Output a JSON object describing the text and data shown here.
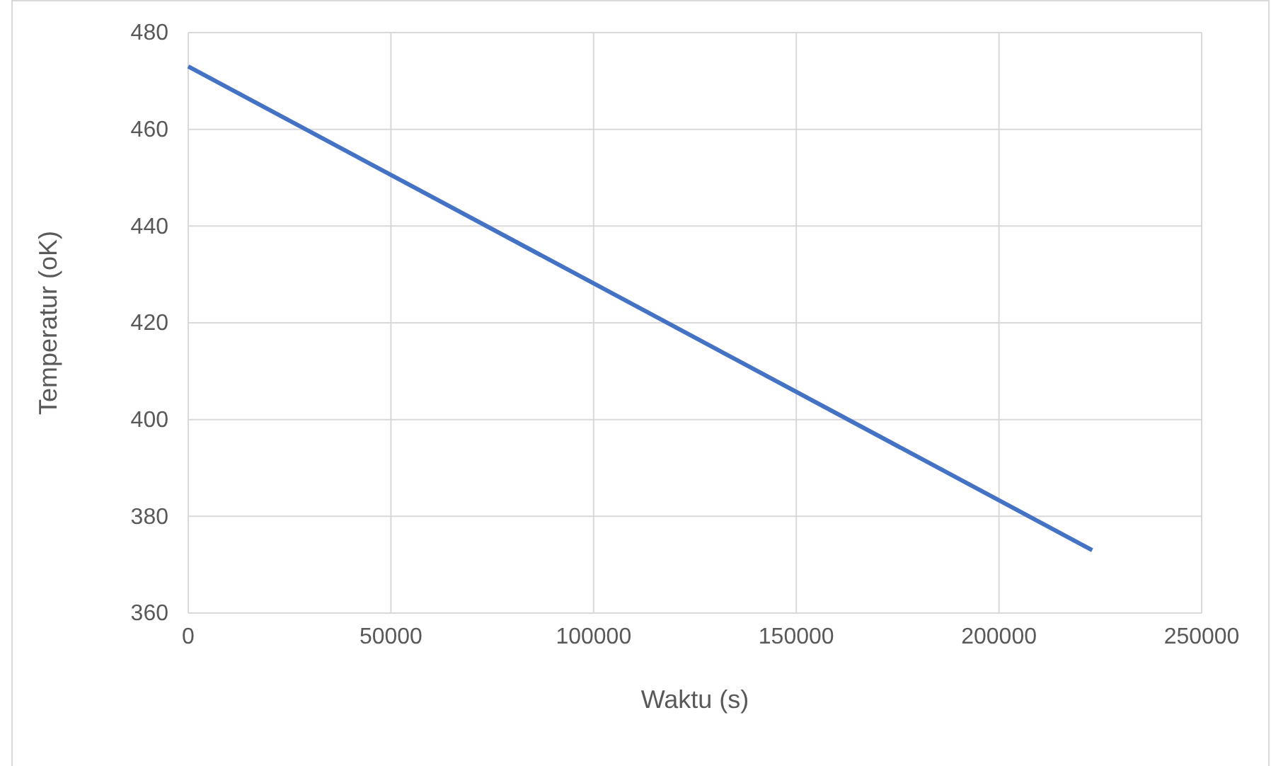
{
  "chart_data": {
    "type": "line",
    "xlabel": "Waktu (s)",
    "ylabel": "Temperatur (oK)",
    "x": [
      0,
      223000
    ],
    "series": [
      {
        "color": "#4472c4",
        "values": [
          473,
          373
        ]
      }
    ],
    "xlim": [
      0,
      250000
    ],
    "xticks": [
      0,
      50000,
      100000,
      150000,
      200000,
      250000
    ],
    "ylim": [
      360,
      480
    ],
    "yticks": [
      360,
      380,
      400,
      420,
      440,
      460,
      480
    ],
    "grid": true,
    "marker": "none",
    "line_style": "solid"
  }
}
